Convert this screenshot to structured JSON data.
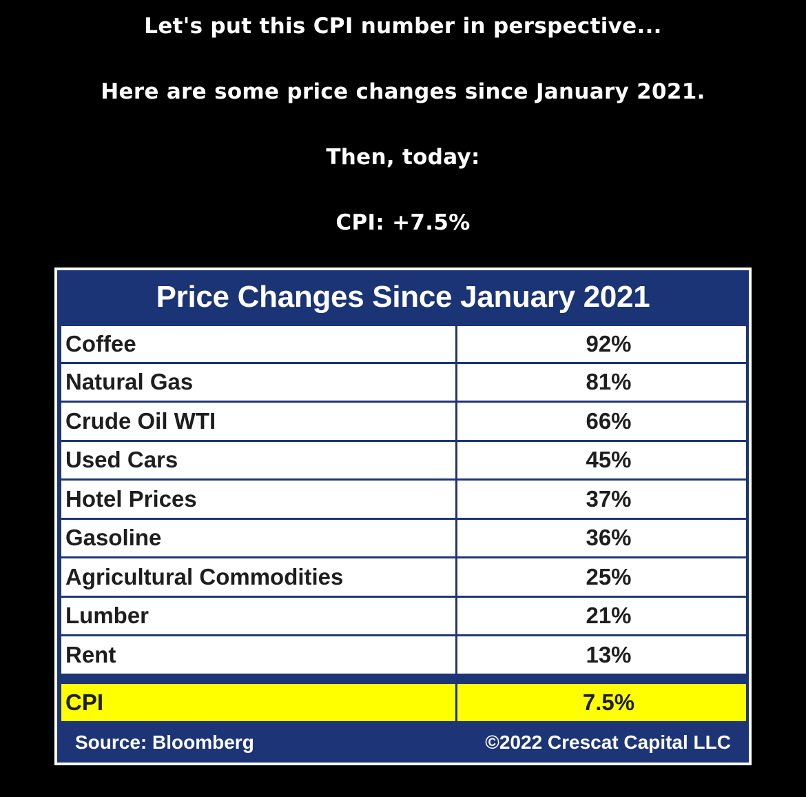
{
  "headings": {
    "line1": "Let's put this CPI number in perspective...",
    "line2": "Here are some price changes since January 2021.",
    "line3": "Then, today:",
    "line4": "CPI: +7.5%"
  },
  "table": {
    "title": "Price Changes Since January 2021",
    "rows": [
      {
        "label": "Coffee",
        "value": "92%"
      },
      {
        "label": "Natural Gas",
        "value": "81%"
      },
      {
        "label": "Crude Oil WTI",
        "value": "66%"
      },
      {
        "label": "Used Cars",
        "value": "45%"
      },
      {
        "label": "Hotel Prices",
        "value": "37%"
      },
      {
        "label": "Gasoline",
        "value": "36%"
      },
      {
        "label": "Agricultural Commodities",
        "value": "25%"
      },
      {
        "label": "Lumber",
        "value": "21%"
      },
      {
        "label": "Rent",
        "value": "13%"
      }
    ],
    "highlight_row": {
      "label": "CPI",
      "value": "7.5%"
    },
    "footer": {
      "source": "Source: Bloomberg",
      "copyright": "©2022 Crescat Capital LLC"
    }
  },
  "colors": {
    "background": "#000000",
    "header_blue": "#1a3475",
    "highlight_yellow": "#ffff00",
    "text_dark": "#1e1e1e"
  }
}
